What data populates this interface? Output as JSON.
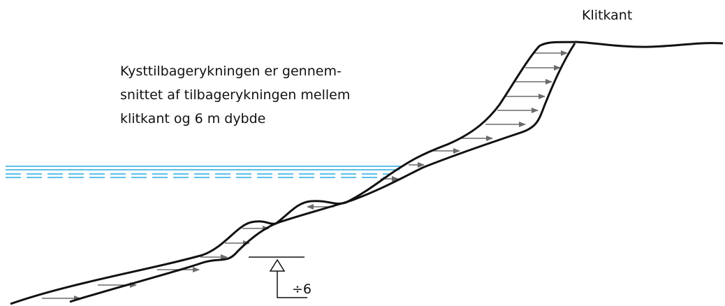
{
  "labels": {
    "top": "Klitkant",
    "description": [
      "Kysttilbagerykningen er gennem-",
      "snittet af tilbagerykningen mellem",
      "klitkant og 6 m dybde"
    ],
    "depth": "÷6"
  }
}
